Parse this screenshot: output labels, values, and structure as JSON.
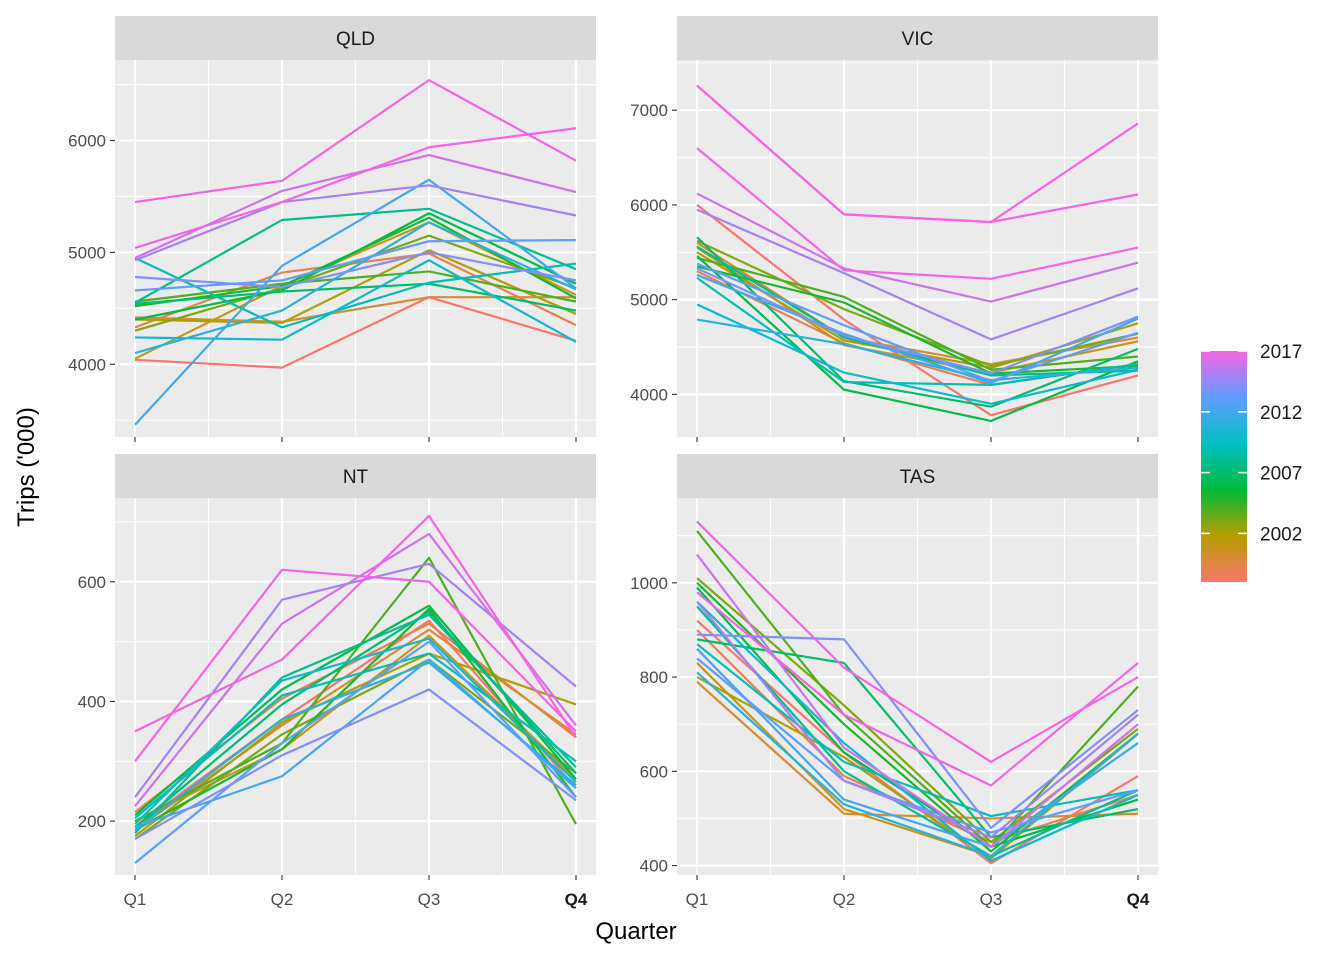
{
  "chart_data": {
    "type": "line",
    "xlabel": "Quarter",
    "ylabel": "Trips ('000)",
    "x": [
      "Q1",
      "Q2",
      "Q3",
      "Q4"
    ],
    "x_tick_bold": "Q4",
    "facet_layout": "2x2",
    "grid": true,
    "legend": {
      "position": "right",
      "type": "continuous colour bar",
      "colors": [
        "#f8766d",
        "#b79f00",
        "#00ba38",
        "#00bfc4",
        "#619cff",
        "#f564e3"
      ],
      "range": [
        1998,
        2017
      ],
      "ticks": [
        2002,
        2007,
        2012,
        2017
      ]
    },
    "panels": [
      {
        "title": "QLD",
        "ylim": [
          3350,
          6720
        ],
        "yticks": [
          4000,
          5000,
          6000
        ],
        "series": [
          {
            "year": 1998,
            "values": [
              4040,
              3970,
              4600,
              4210
            ]
          },
          {
            "year": 1999,
            "values": [
              4330,
              4820,
              4990,
              4350
            ]
          },
          {
            "year": 2000,
            "values": [
              4420,
              4380,
              4600,
              4600
            ]
          },
          {
            "year": 2001,
            "values": [
              4050,
              4700,
              5270,
              4620
            ]
          },
          {
            "year": 2002,
            "values": [
              4400,
              4370,
              5020,
              4450
            ]
          },
          {
            "year": 2003,
            "values": [
              4300,
              4680,
              5150,
              4680
            ]
          },
          {
            "year": 2004,
            "values": [
              4560,
              4720,
              4830,
              4560
            ]
          },
          {
            "year": 2005,
            "values": [
              4520,
              4700,
              5310,
              4590
            ]
          },
          {
            "year": 2006,
            "values": [
              4400,
              4660,
              5350,
              4720
            ]
          },
          {
            "year": 2007,
            "values": [
              4540,
              4650,
              4720,
              4480
            ]
          },
          {
            "year": 2008,
            "values": [
              4550,
              5290,
              5390,
              4850
            ]
          },
          {
            "year": 2009,
            "values": [
              4950,
              4330,
              4730,
              4900
            ]
          },
          {
            "year": 2010,
            "values": [
              4240,
              4220,
              4930,
              4200
            ]
          },
          {
            "year": 2011,
            "values": [
              4100,
              4480,
              5270,
              4670
            ]
          },
          {
            "year": 2012,
            "values": [
              3460,
              4880,
              5650,
              4680
            ]
          },
          {
            "year": 2013,
            "values": [
              4660,
              4750,
              5100,
              5110
            ]
          },
          {
            "year": 2014,
            "values": [
              4780,
              4690,
              5000,
              4750
            ]
          },
          {
            "year": 2015,
            "values": [
              4930,
              5450,
              5600,
              5330
            ]
          },
          {
            "year": 2016,
            "values": [
              4950,
              5550,
              5870,
              5540
            ]
          },
          {
            "year": 2017,
            "values": [
              5040,
              5450,
              5940,
              6110
            ]
          },
          {
            "year": 2018,
            "values": [
              5450,
              5640,
              6540,
              5820
            ]
          }
        ]
      },
      {
        "title": "VIC",
        "ylim": [
          3550,
          7530
        ],
        "yticks": [
          4000,
          5000,
          6000,
          7000
        ],
        "series": [
          {
            "year": 1998,
            "values": [
              6000,
              4790,
              3780,
              4200
            ]
          },
          {
            "year": 1999,
            "values": [
              5300,
              4540,
              4100,
              4320
            ]
          },
          {
            "year": 2000,
            "values": [
              5600,
              4600,
              4320,
              4600
            ]
          },
          {
            "year": 2001,
            "values": [
              5550,
              4520,
              4230,
              4560
            ]
          },
          {
            "year": 2002,
            "values": [
              5500,
              4570,
              4280,
              4750
            ]
          },
          {
            "year": 2003,
            "values": [
              5620,
              4900,
              4300,
              4640
            ]
          },
          {
            "year": 2004,
            "values": [
              5440,
              5030,
              4260,
              4400
            ]
          },
          {
            "year": 2005,
            "values": [
              5350,
              4970,
              4220,
              4300
            ]
          },
          {
            "year": 2006,
            "values": [
              5460,
              4050,
              3720,
              4350
            ]
          },
          {
            "year": 2007,
            "values": [
              5660,
              4140,
              3870,
              4480
            ]
          },
          {
            "year": 2008,
            "values": [
              5560,
              4600,
              4200,
              4250
            ]
          },
          {
            "year": 2009,
            "values": [
              5230,
              4130,
              4100,
              4320
            ]
          },
          {
            "year": 2010,
            "values": [
              4950,
              4230,
              3900,
              4260
            ]
          },
          {
            "year": 2011,
            "values": [
              4790,
              4530,
              4150,
              4280
            ]
          },
          {
            "year": 2012,
            "values": [
              5260,
              4640,
              4120,
              4800
            ]
          },
          {
            "year": 2013,
            "values": [
              5380,
              4730,
              4140,
              4650
            ]
          },
          {
            "year": 2014,
            "values": [
              5330,
              4620,
              4220,
              4820
            ]
          },
          {
            "year": 2015,
            "values": [
              5950,
              5280,
              4580,
              5120
            ]
          },
          {
            "year": 2016,
            "values": [
              6120,
              5330,
              4980,
              5390
            ]
          },
          {
            "year": 2017,
            "values": [
              6600,
              5310,
              5220,
              5550
            ]
          },
          {
            "year": 2018,
            "values": [
              7260,
              5900,
              5820,
              6110
            ]
          },
          {
            "year": 2019,
            "values": [
              7260,
              5900,
              5820,
              6860
            ]
          }
        ]
      },
      {
        "title": "NT",
        "ylim": [
          110,
          740
        ],
        "yticks": [
          200,
          400,
          600
        ],
        "series": [
          {
            "year": 1998,
            "values": [
              190,
              370,
              535,
              255
            ]
          },
          {
            "year": 1999,
            "values": [
              215,
              405,
              530,
              340
            ]
          },
          {
            "year": 2000,
            "values": [
              185,
              360,
              520,
              345
            ]
          },
          {
            "year": 2001,
            "values": [
              200,
              320,
              510,
              270
            ]
          },
          {
            "year": 2002,
            "values": [
              175,
              365,
              480,
              395
            ]
          },
          {
            "year": 2003,
            "values": [
              170,
              345,
              470,
              280
            ]
          },
          {
            "year": 2004,
            "values": [
              200,
              330,
              640,
              195
            ]
          },
          {
            "year": 2005,
            "values": [
              185,
              320,
              555,
              240
            ]
          },
          {
            "year": 2006,
            "values": [
              210,
              420,
              560,
              270
            ]
          },
          {
            "year": 2007,
            "values": [
              190,
              395,
              550,
              280
            ]
          },
          {
            "year": 2008,
            "values": [
              180,
              440,
              545,
              290
            ]
          },
          {
            "year": 2009,
            "values": [
              205,
              410,
              480,
              300
            ]
          },
          {
            "year": 2010,
            "values": [
              195,
              435,
              505,
              265
            ]
          },
          {
            "year": 2011,
            "values": [
              185,
              370,
              465,
              260
            ]
          },
          {
            "year": 2012,
            "values": [
              190,
              275,
              470,
              255
            ]
          },
          {
            "year": 2013,
            "values": [
              130,
              330,
              500,
              240
            ]
          },
          {
            "year": 2014,
            "values": [
              170,
              310,
              420,
              235
            ]
          },
          {
            "year": 2015,
            "values": [
              240,
              570,
              630,
              425
            ]
          },
          {
            "year": 2016,
            "values": [
              225,
              530,
              680,
              360
            ]
          },
          {
            "year": 2017,
            "values": [
              350,
              470,
              710,
              340
            ]
          },
          {
            "year": 2018,
            "values": [
              300,
              620,
              600,
              350
            ]
          }
        ]
      },
      {
        "title": "TAS",
        "ylim": [
          380,
          1180
        ],
        "yticks": [
          400,
          600,
          800,
          1000
        ],
        "series": [
          {
            "year": 1998,
            "values": [
              920,
              640,
              405,
              590
            ]
          },
          {
            "year": 1999,
            "values": [
              900,
              590,
              450,
              550
            ]
          },
          {
            "year": 2000,
            "values": [
              790,
              510,
              500,
              510
            ]
          },
          {
            "year": 2001,
            "values": [
              830,
              520,
              420,
              680
            ]
          },
          {
            "year": 2002,
            "values": [
              800,
              630,
              415,
              680
            ]
          },
          {
            "year": 2003,
            "values": [
              1010,
              740,
              450,
              690
            ]
          },
          {
            "year": 2004,
            "values": [
              1110,
              720,
              440,
              780
            ]
          },
          {
            "year": 2005,
            "values": [
              1000,
              700,
              430,
              680
            ]
          },
          {
            "year": 2006,
            "values": [
              990,
              640,
              440,
              540
            ]
          },
          {
            "year": 2007,
            "values": [
              880,
              830,
              460,
              520
            ]
          },
          {
            "year": 2008,
            "values": [
              950,
              600,
              420,
              560
            ]
          },
          {
            "year": 2009,
            "values": [
              870,
              620,
              505,
              560
            ]
          },
          {
            "year": 2010,
            "values": [
              960,
              660,
              410,
              550
            ]
          },
          {
            "year": 2011,
            "values": [
              810,
              530,
              420,
              680
            ]
          },
          {
            "year": 2012,
            "values": [
              860,
              540,
              440,
              660
            ]
          },
          {
            "year": 2013,
            "values": [
              840,
              580,
              470,
              560
            ]
          },
          {
            "year": 2014,
            "values": [
              890,
              880,
              480,
              730
            ]
          },
          {
            "year": 2015,
            "values": [
              960,
              580,
              460,
              720
            ]
          },
          {
            "year": 2016,
            "values": [
              1060,
              650,
              440,
              700
            ]
          },
          {
            "year": 2017,
            "values": [
              980,
              720,
              570,
              830
            ]
          },
          {
            "year": 2018,
            "values": [
              1130,
              820,
              620,
              800
            ]
          }
        ]
      }
    ]
  }
}
